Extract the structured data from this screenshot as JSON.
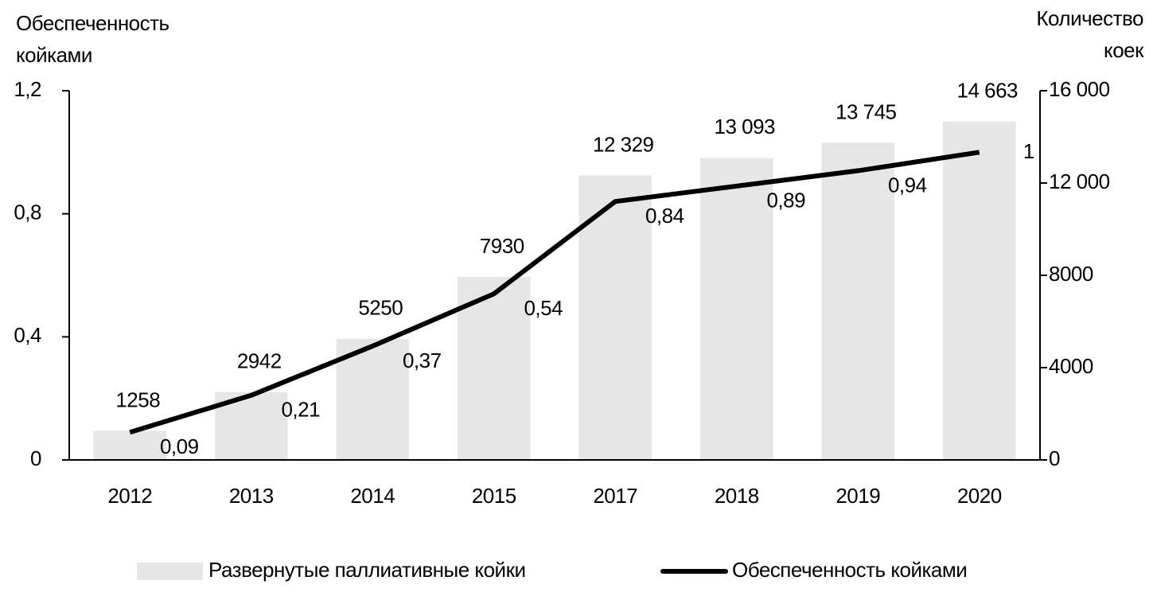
{
  "chart_data": {
    "type": "bar-line",
    "y_label": [
      "Обеспеченность",
      "койками"
    ],
    "y2_label": [
      "Количество",
      "коек"
    ],
    "categories": [
      "2012",
      "2013",
      "2014",
      "2015",
      "2017",
      "2018",
      "2019",
      "2020"
    ],
    "series": [
      {
        "name": "Развернутые паллиативные койки",
        "type": "bar",
        "axis": "y2",
        "color": "#e6e6e6",
        "values": [
          1258,
          2942,
          5250,
          7930,
          12329,
          13093,
          13745,
          14663
        ],
        "value_labels": [
          "1258",
          "2942",
          "5250",
          "7930",
          "12 329",
          "13 093",
          "13 745",
          "14 663"
        ]
      },
      {
        "name": "Обеспеченность койками",
        "type": "line",
        "axis": "y",
        "color": "#000000",
        "values": [
          0.09,
          0.21,
          0.37,
          0.54,
          0.84,
          0.89,
          0.94,
          1
        ],
        "value_labels": [
          "0,09",
          "0,21",
          "0,37",
          "0,54",
          "0,84",
          "0,89",
          "0,94",
          "1"
        ]
      }
    ],
    "ylim": [
      0,
      1.2
    ],
    "yticks": [
      0,
      {
        "value": 0.4,
        "label": "0,4"
      },
      {
        "value": 0.8,
        "label": "0,8"
      },
      {
        "value": 1.2,
        "label": "1,2"
      }
    ],
    "y2lim": [
      0,
      16000
    ],
    "y2ticks": [
      0,
      4000,
      8000,
      {
        "value": 12000,
        "label": "12 000"
      },
      {
        "value": 16000,
        "label": "16 000"
      }
    ],
    "grid": false,
    "legend": "bottom"
  }
}
